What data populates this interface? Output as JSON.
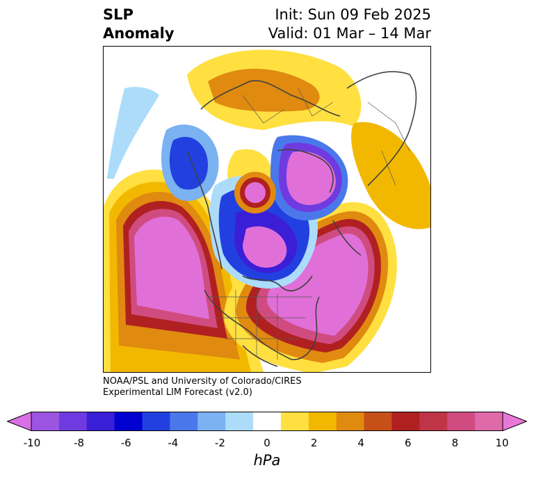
{
  "title": {
    "line1": "SLP",
    "line2": "Anomaly"
  },
  "subtitle": {
    "init": "Init: Sun 09 Feb 2025",
    "valid": "Valid: 01 Mar – 14 Mar"
  },
  "credit": {
    "line1": "NOAA/PSL and University of Colorado/CIRES",
    "line2": "Experimental LIM Forecast (v2.0)"
  },
  "colorbar": {
    "unit": "hPa",
    "tick_labels": [
      "-10",
      "-8",
      "-6",
      "-4",
      "-2",
      "0",
      "2",
      "4",
      "6",
      "8",
      "10"
    ],
    "colors": [
      "#9b55e0",
      "#6f3be0",
      "#3a1fd6",
      "#0000d0",
      "#2240e0",
      "#4a78ea",
      "#7ab2f2",
      "#acdcfa",
      "#ffffff",
      "#ffe040",
      "#f2b800",
      "#e08a10",
      "#c65018",
      "#b02020",
      "#c03448",
      "#d04c80",
      "#de6aaa"
    ],
    "extend_low_color": "#d870e6",
    "extend_high_color": "#e878d8"
  },
  "map": {
    "projection": "north-polar-stereographic",
    "positive_color": "#e070d8",
    "negative_color": "#d070e8"
  }
}
